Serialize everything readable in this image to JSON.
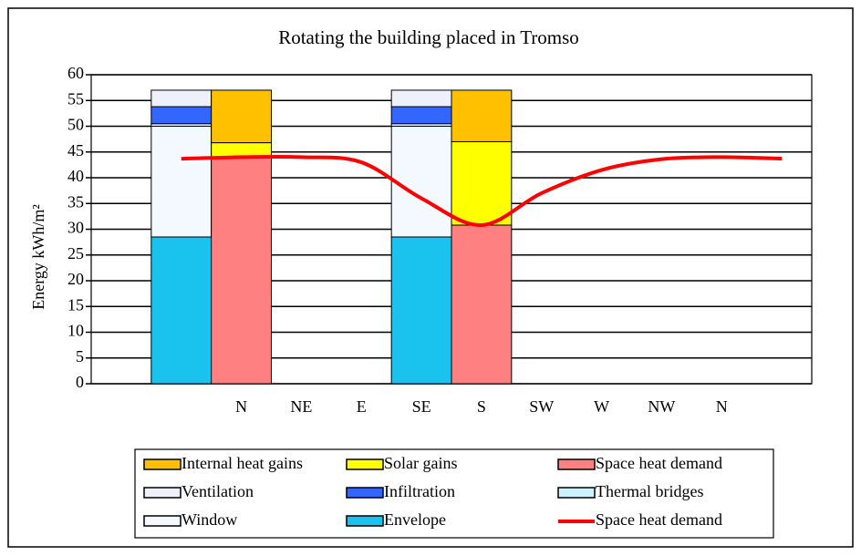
{
  "chart_data": {
    "type": "bar",
    "stacked": true,
    "title": "Rotating the building placed in Tromso",
    "y_label": "Energy kWh/m²",
    "categories": [
      null,
      null,
      "N",
      "NE",
      "E",
      "SE",
      "S",
      "SW",
      "W",
      "NW",
      "N",
      null
    ],
    "ylim": [
      0,
      60
    ],
    "yticks": [
      0,
      5,
      10,
      15,
      20,
      25,
      30,
      35,
      40,
      45,
      50,
      55,
      60
    ],
    "grid": true,
    "legend": "bottom",
    "series": [
      {
        "name": "Internal heat gains",
        "type": "bar",
        "stack": "gains",
        "color": "#ffc000",
        "values": [
          null,
          null,
          10.2,
          null,
          null,
          null,
          10,
          null,
          null,
          null,
          null,
          null
        ]
      },
      {
        "name": "Solar gains",
        "type": "bar",
        "stack": "gains",
        "color": "#ffff00",
        "values": [
          null,
          null,
          2.8,
          null,
          null,
          null,
          16.2,
          null,
          null,
          null,
          null,
          null
        ]
      },
      {
        "name": "Space heat demand",
        "type": "bar",
        "stack": "gains",
        "color": "#ff8080",
        "values": [
          null,
          null,
          44,
          null,
          null,
          null,
          30.8,
          null,
          null,
          null,
          null,
          null
        ]
      },
      {
        "name": "Ventilation",
        "type": "bar",
        "stack": "losses",
        "color": "#eef0fa",
        "values": [
          null,
          3.2,
          null,
          null,
          null,
          3.2,
          null,
          null,
          null,
          null,
          null,
          null
        ]
      },
      {
        "name": "Infiltration",
        "type": "bar",
        "stack": "losses",
        "color": "#3366ff",
        "values": [
          null,
          3.3,
          null,
          null,
          null,
          3.3,
          null,
          null,
          null,
          null,
          null,
          null
        ]
      },
      {
        "name": "Thermal bridges",
        "type": "bar",
        "stack": "losses",
        "color": "#ccf2ff",
        "values": [
          null,
          0.5,
          null,
          null,
          null,
          0.5,
          null,
          null,
          null,
          null,
          null,
          null
        ]
      },
      {
        "name": "Window",
        "type": "bar",
        "stack": "losses",
        "color": "#f4f8ff",
        "values": [
          null,
          21.5,
          null,
          null,
          null,
          21.5,
          null,
          null,
          null,
          null,
          null,
          null
        ]
      },
      {
        "name": "Envelope",
        "type": "bar",
        "stack": "losses",
        "color": "#19c3ee",
        "values": [
          null,
          28.5,
          null,
          null,
          null,
          28.5,
          null,
          null,
          null,
          null,
          null,
          null
        ]
      },
      {
        "name": "Space heat demand",
        "type": "line",
        "color": "#ff0000",
        "values": [
          null,
          43.7,
          44,
          44,
          43,
          36,
          30.8,
          37,
          41.5,
          43.6,
          44,
          43.7
        ]
      }
    ]
  }
}
